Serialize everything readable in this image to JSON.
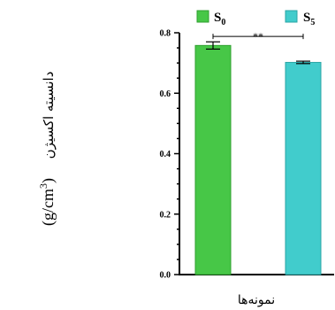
{
  "chart_data": {
    "type": "bar",
    "categories": [
      "S0",
      "S5"
    ],
    "series_names": [
      {
        "base": "S",
        "sub": "0"
      },
      {
        "base": "S",
        "sub": "5"
      }
    ],
    "values": [
      0.758,
      0.702
    ],
    "errors": [
      0.012,
      0.004
    ],
    "colors": [
      "#47c747",
      "#41cccc"
    ],
    "edge_colors": [
      "#2f9f2f",
      "#2aa5a5"
    ],
    "ylim": [
      0.0,
      0.8
    ],
    "yticks": [
      "0.0",
      "0.2",
      "0.4",
      "0.6",
      "0.8"
    ],
    "ylabel_text": "دانسیته اکسیژن",
    "ylabel_unit": {
      "open": "(g/cm",
      "sup": "3",
      "close": ")"
    },
    "xlabel": "نمونه‌ها",
    "significance": {
      "label": "**",
      "from": "S0",
      "to": "S5"
    },
    "legend_position": "top",
    "grid": false
  }
}
